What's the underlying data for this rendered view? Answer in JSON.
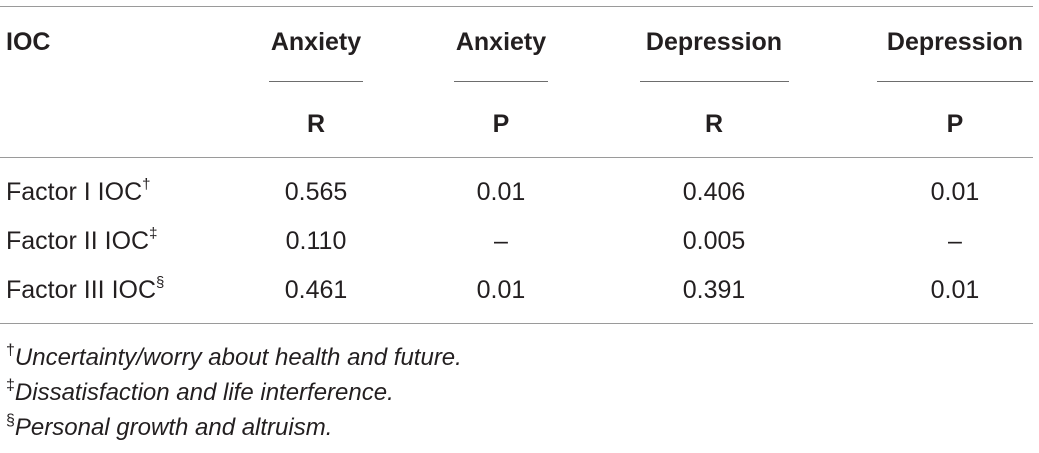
{
  "table": {
    "header": {
      "stub": "IOC",
      "groups": [
        "Anxiety",
        "Anxiety",
        "Depression",
        "Depression"
      ],
      "subheaders": [
        "R",
        "P",
        "R",
        "P"
      ]
    },
    "rows": [
      {
        "label": "Factor I IOC",
        "mark": "†",
        "values": [
          "0.565",
          "0.01",
          "0.406",
          "0.01"
        ]
      },
      {
        "label": "Factor II IOC",
        "mark": "‡",
        "values": [
          "0.110",
          "–",
          "0.005",
          "–"
        ]
      },
      {
        "label": "Factor III IOC",
        "mark": "§",
        "values": [
          "0.461",
          "0.01",
          "0.391",
          "0.01"
        ]
      }
    ]
  },
  "footnotes": [
    {
      "mark": "†",
      "text": "Uncertainty/worry about health and future."
    },
    {
      "mark": "‡",
      "text": "Dissatisfaction and life interference."
    },
    {
      "mark": "§",
      "text": "Personal growth and altruism."
    }
  ]
}
